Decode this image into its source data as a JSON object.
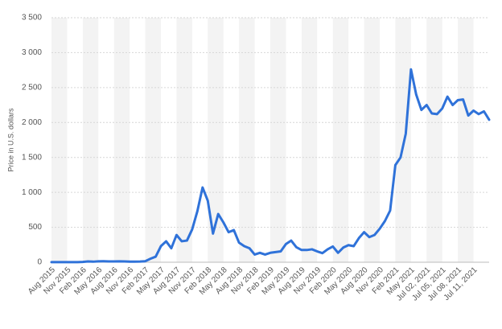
{
  "chart_data": {
    "type": "line",
    "y_label": "Price in U.S. dollars",
    "categories": [
      "Aug 2015",
      null,
      null,
      "Nov 2015",
      null,
      null,
      "Feb 2016",
      null,
      null,
      "May 2016",
      null,
      null,
      "Aug 2016",
      null,
      null,
      "Nov 2016",
      null,
      null,
      "Feb 2017",
      null,
      null,
      "May 2017",
      null,
      null,
      "Aug 2017",
      null,
      null,
      "Nov 2017",
      null,
      null,
      "Feb 2018",
      null,
      null,
      "May 2018",
      null,
      null,
      "Aug 2018",
      null,
      null,
      "Nov 2018",
      null,
      null,
      "Feb 2019",
      null,
      null,
      "May 2019",
      null,
      null,
      "Aug 2019",
      null,
      null,
      "Nov 2019",
      null,
      null,
      "Feb 2020",
      null,
      null,
      "May 2020",
      null,
      null,
      "Aug 2020",
      null,
      null,
      "Nov 2020",
      null,
      null,
      "Feb 2021",
      null,
      null,
      "May 2021",
      null,
      null,
      "Jul 02, 2021",
      null,
      null,
      "Jul 05, 2021",
      null,
      null,
      "Jul 08, 2021",
      null,
      null,
      "Jul 11, 2021",
      null,
      null,
      null
    ],
    "values": [
      1,
      1,
      1,
      1,
      1,
      2,
      5,
      11,
      8,
      13,
      14,
      12,
      12,
      13,
      12,
      9,
      8,
      10,
      15,
      50,
      80,
      230,
      300,
      200,
      390,
      300,
      310,
      470,
      730,
      1070,
      880,
      410,
      690,
      570,
      430,
      460,
      280,
      230,
      200,
      110,
      135,
      110,
      135,
      145,
      155,
      260,
      310,
      215,
      175,
      175,
      185,
      155,
      130,
      185,
      225,
      135,
      210,
      245,
      230,
      345,
      430,
      360,
      390,
      480,
      590,
      740,
      1390,
      1500,
      1840,
      2760,
      2400,
      2180,
      2250,
      2130,
      2120,
      2200,
      2370,
      2250,
      2320,
      2330,
      2100,
      2170,
      2120,
      2160,
      2040
    ],
    "color": "#2f72d9",
    "ylim": [
      0,
      3500
    ],
    "yticks": [
      0,
      500,
      {
        "value": 1000,
        "label": "1 000"
      },
      {
        "value": 1500,
        "label": "1 500"
      },
      {
        "value": 2000,
        "label": "2 000"
      },
      {
        "value": 2500,
        "label": "2 500"
      },
      {
        "value": 3000,
        "label": "3 000"
      },
      {
        "value": 3500,
        "label": "3 500"
      }
    ],
    "grid": true
  }
}
